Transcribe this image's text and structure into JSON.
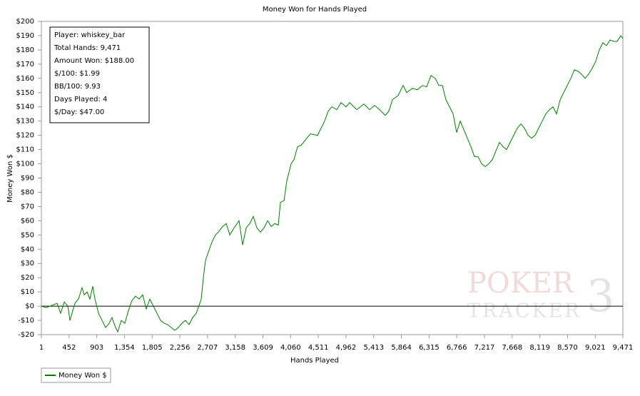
{
  "chart_data": {
    "type": "line",
    "title": "Money Won for Hands Played",
    "x_label": "Hands Played",
    "y_label": "Money Won $",
    "info_box": [
      "Player: whiskey_bar",
      "Total Hands: 9,471",
      "Amount Won: $188.00",
      "$/100: $1.99",
      "BB/100: 9.93",
      "Days Played: 4",
      "$/Day: $47.00"
    ],
    "watermark": [
      "POKER",
      "TRACKER",
      "3"
    ],
    "xlim": [
      1,
      9471
    ],
    "ylim": [
      -20,
      200
    ],
    "xticks": [
      1,
      452,
      903,
      {
        "value": 1354,
        "label": "1,354"
      },
      {
        "value": 1805,
        "label": "1,805"
      },
      {
        "value": 2256,
        "label": "2,256"
      },
      {
        "value": 2707,
        "label": "2,707"
      },
      {
        "value": 3158,
        "label": "3,158"
      },
      {
        "value": 3609,
        "label": "3,609"
      },
      {
        "value": 4060,
        "label": "4,060"
      },
      {
        "value": 4511,
        "label": "4,511"
      },
      {
        "value": 4962,
        "label": "4,962"
      },
      {
        "value": 5413,
        "label": "5,413"
      },
      {
        "value": 5864,
        "label": "5,864"
      },
      {
        "value": 6315,
        "label": "6,315"
      },
      {
        "value": 6766,
        "label": "6,766"
      },
      {
        "value": 7217,
        "label": "7,217"
      },
      {
        "value": 7668,
        "label": "7,668"
      },
      {
        "value": 8119,
        "label": "8,119"
      },
      {
        "value": 8570,
        "label": "8,570"
      },
      {
        "value": 9021,
        "label": "9,021"
      },
      {
        "value": 9471,
        "label": "9,471"
      }
    ],
    "yticks": [
      {
        "value": 200,
        "label": "$200"
      },
      {
        "value": 190,
        "label": "$190"
      },
      {
        "value": 180,
        "label": "$180"
      },
      {
        "value": 170,
        "label": "$170"
      },
      {
        "value": 160,
        "label": "$160"
      },
      {
        "value": 150,
        "label": "$150"
      },
      {
        "value": 140,
        "label": "$140"
      },
      {
        "value": 130,
        "label": "$130"
      },
      {
        "value": 120,
        "label": "$120"
      },
      {
        "value": 110,
        "label": "$110"
      },
      {
        "value": 100,
        "label": "$100"
      },
      {
        "value": 90,
        "label": "$90"
      },
      {
        "value": 80,
        "label": "$80"
      },
      {
        "value": 70,
        "label": "$70"
      },
      {
        "value": 60,
        "label": "$60"
      },
      {
        "value": 50,
        "label": "$50"
      },
      {
        "value": 40,
        "label": "$40"
      },
      {
        "value": 30,
        "label": "$30"
      },
      {
        "value": 20,
        "label": "$20"
      },
      {
        "value": 10,
        "label": "$10"
      },
      {
        "value": 0,
        "label": "$0"
      },
      {
        "value": -10,
        "label": "-$10"
      },
      {
        "value": -20,
        "label": "-$20"
      }
    ],
    "grid": false,
    "legend": "bottom-left",
    "x": [
      1,
      82,
      199,
      257,
      315,
      374,
      432,
      466,
      547,
      605,
      663,
      698,
      745,
      791,
      838,
      873,
      931,
      989,
      1047,
      1105,
      1151,
      1209,
      1244,
      1302,
      1361,
      1419,
      1477,
      1535,
      1593,
      1651,
      1709,
      1767,
      1825,
      1884,
      1942,
      2000,
      2058,
      2116,
      2174,
      2232,
      2290,
      2348,
      2406,
      2465,
      2523,
      2557,
      2604,
      2639,
      2673,
      2720,
      2778,
      2836,
      2883,
      2953,
      3011,
      3069,
      3139,
      3220,
      3278,
      3336,
      3394,
      3452,
      3510,
      3568,
      3627,
      3685,
      3743,
      3801,
      3859,
      3894,
      3952,
      3998,
      4068,
      4115,
      4173,
      4231,
      4324,
      4382,
      4498,
      4556,
      4614,
      4672,
      4730,
      4812,
      4881,
      4963,
      5021,
      5137,
      5195,
      5253,
      5346,
      5427,
      5509,
      5602,
      5660,
      5718,
      5811,
      5892,
      5950,
      6043,
      6124,
      6206,
      6276,
      6345,
      6415,
      6473,
      6531,
      6589,
      6648,
      6706,
      6764,
      6822,
      6880,
      6938,
      6996,
      7054,
      7112,
      7171,
      7229,
      7287,
      7345,
      7403,
      7461,
      7519,
      7577,
      7635,
      7693,
      7752,
      7810,
      7868,
      7926,
      7984,
      8042,
      8100,
      8158,
      8216,
      8274,
      8333,
      8391,
      8449,
      8507,
      8565,
      8623,
      8681,
      8739,
      8797,
      8855,
      8913,
      8971,
      9029,
      9087,
      9145,
      9204,
      9262,
      9320,
      9378,
      9436,
      9471
    ],
    "series": [
      {
        "name": "Money Won $",
        "color": "#008000",
        "values": [
          0,
          -1,
          1,
          2,
          -5,
          3,
          0,
          -10,
          2,
          5,
          13,
          8,
          10,
          5,
          14,
          5,
          -5,
          -10,
          -15,
          -12,
          -8,
          -15,
          -18,
          -10,
          -12,
          -3,
          4,
          7,
          5,
          8,
          -2,
          5,
          0,
          -5,
          -10,
          -12,
          -13,
          -15,
          -17,
          -15,
          -12,
          -10,
          -13,
          -8,
          -5,
          -1,
          5,
          20,
          32,
          38,
          45,
          50,
          52,
          56,
          58,
          50,
          55,
          60,
          43,
          55,
          58,
          63,
          55,
          52,
          55,
          60,
          56,
          58,
          57,
          73,
          74,
          88,
          100,
          103,
          112,
          113,
          118,
          121,
          120,
          125,
          130,
          137,
          140,
          138,
          143,
          140,
          143,
          138,
          140,
          142,
          138,
          141,
          138,
          134,
          137,
          145,
          148,
          155,
          150,
          153,
          152,
          155,
          154,
          162,
          160,
          155,
          155,
          145,
          140,
          135,
          122,
          130,
          124,
          118,
          112,
          105,
          105,
          100,
          98,
          100,
          103,
          109,
          115,
          112,
          110,
          115,
          120,
          125,
          128,
          125,
          120,
          118,
          120,
          125,
          130,
          135,
          138,
          140,
          135,
          145,
          150,
          155,
          160,
          166,
          165,
          163,
          160,
          163,
          167,
          172,
          180,
          185,
          183,
          187,
          186,
          186,
          190,
          188
        ]
      }
    ]
  }
}
